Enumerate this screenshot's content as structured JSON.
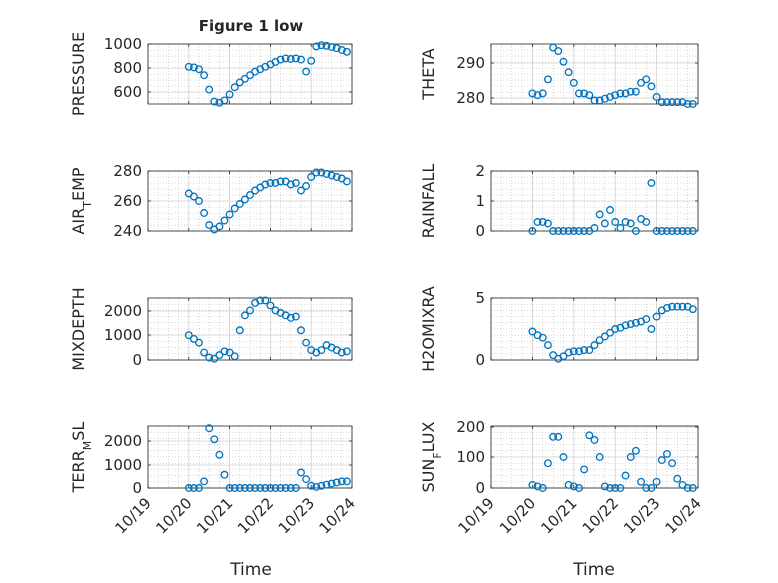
{
  "figure": {
    "title": "Figure 1 low"
  },
  "colors": {
    "marker": "#0072BD",
    "axis": "#262626",
    "grid": "#b0b0b0",
    "background": "#ffffff"
  },
  "chart_data": [
    {
      "type": "scatter",
      "ylabel": "PRESSURE",
      "title": "Figure 1 low",
      "xlim": [
        "10/19",
        "10/24"
      ],
      "ylim": [
        500,
        1000
      ],
      "yticks": [
        600,
        800,
        1000
      ],
      "grid": true,
      "x": [
        "10/20 00:00",
        "10/20 03:00",
        "10/20 06:00",
        "10/20 09:00",
        "10/20 12:00",
        "10/20 15:00",
        "10/20 18:00",
        "10/20 21:00",
        "10/21 00:00",
        "10/21 03:00",
        "10/21 06:00",
        "10/21 09:00",
        "10/21 12:00",
        "10/21 15:00",
        "10/21 18:00",
        "10/21 21:00",
        "10/22 00:00",
        "10/22 03:00",
        "10/22 06:00",
        "10/22 09:00",
        "10/22 12:00",
        "10/22 15:00",
        "10/22 18:00",
        "10/22 21:00",
        "10/23 00:00",
        "10/23 03:00",
        "10/23 06:00",
        "10/23 09:00",
        "10/23 12:00",
        "10/23 15:00",
        "10/23 18:00",
        "10/23 21:00"
      ],
      "y": [
        810,
        805,
        790,
        740,
        620,
        520,
        510,
        530,
        580,
        640,
        680,
        710,
        740,
        770,
        790,
        810,
        830,
        850,
        870,
        880,
        875,
        880,
        870,
        770,
        860,
        980,
        990,
        985,
        975,
        965,
        950,
        935
      ]
    },
    {
      "type": "scatter",
      "ylabel": "THETA",
      "xlim": [
        "10/19",
        "10/24"
      ],
      "ylim": [
        279,
        296
      ],
      "yticks": [
        280,
        290
      ],
      "grid": true,
      "x": [
        "10/20 00:00",
        "10/20 03:00",
        "10/20 06:00",
        "10/20 09:00",
        "10/20 12:00",
        "10/20 15:00",
        "10/20 18:00",
        "10/20 21:00",
        "10/21 00:00",
        "10/21 03:00",
        "10/21 06:00",
        "10/21 09:00",
        "10/21 12:00",
        "10/21 15:00",
        "10/21 18:00",
        "10/21 21:00",
        "10/22 00:00",
        "10/22 03:00",
        "10/22 06:00",
        "10/22 09:00",
        "10/22 12:00",
        "10/22 15:00",
        "10/22 18:00",
        "10/22 21:00",
        "10/23 00:00",
        "10/23 03:00",
        "10/23 06:00",
        "10/23 09:00",
        "10/23 12:00",
        "10/23 15:00",
        "10/23 18:00",
        "10/23 21:00"
      ],
      "y": [
        282,
        281.5,
        282,
        286,
        295,
        294,
        291,
        288,
        285,
        282,
        282,
        281.5,
        280,
        280,
        280.5,
        281,
        281.5,
        282,
        282,
        282.5,
        282.5,
        285,
        286,
        284,
        281,
        279.5,
        279.5,
        279.5,
        279.5,
        279.5,
        279,
        279
      ]
    },
    {
      "type": "scatter",
      "ylabel": "AIR_TEMP",
      "xlim": [
        "10/19",
        "10/24"
      ],
      "ylim": [
        240,
        280
      ],
      "yticks": [
        240,
        260,
        280
      ],
      "grid": true,
      "x": [
        "10/20 00:00",
        "10/20 03:00",
        "10/20 06:00",
        "10/20 09:00",
        "10/20 12:00",
        "10/20 15:00",
        "10/20 18:00",
        "10/20 21:00",
        "10/21 00:00",
        "10/21 03:00",
        "10/21 06:00",
        "10/21 09:00",
        "10/21 12:00",
        "10/21 15:00",
        "10/21 18:00",
        "10/21 21:00",
        "10/22 00:00",
        "10/22 03:00",
        "10/22 06:00",
        "10/22 09:00",
        "10/22 12:00",
        "10/22 15:00",
        "10/22 18:00",
        "10/22 21:00",
        "10/23 00:00",
        "10/23 03:00",
        "10/23 06:00",
        "10/23 09:00",
        "10/23 12:00",
        "10/23 15:00",
        "10/23 18:00",
        "10/23 21:00"
      ],
      "y": [
        265,
        263,
        260,
        252,
        244,
        241,
        243,
        247,
        251,
        255,
        258,
        261,
        264,
        267,
        269,
        271,
        272,
        272,
        273,
        273,
        271,
        272,
        267,
        270,
        276,
        279,
        279,
        278,
        277,
        276,
        275,
        273
      ]
    },
    {
      "type": "scatter",
      "ylabel": "RAINFALL",
      "xlim": [
        "10/19",
        "10/24"
      ],
      "ylim": [
        0,
        2
      ],
      "yticks": [
        0,
        1,
        2
      ],
      "grid": true,
      "x": [
        "10/20 00:00",
        "10/20 03:00",
        "10/20 06:00",
        "10/20 09:00",
        "10/20 12:00",
        "10/20 15:00",
        "10/20 18:00",
        "10/20 21:00",
        "10/21 00:00",
        "10/21 03:00",
        "10/21 06:00",
        "10/21 09:00",
        "10/21 12:00",
        "10/21 15:00",
        "10/21 18:00",
        "10/21 21:00",
        "10/22 00:00",
        "10/22 03:00",
        "10/22 06:00",
        "10/22 09:00",
        "10/22 12:00",
        "10/22 15:00",
        "10/22 18:00",
        "10/22 21:00",
        "10/23 00:00",
        "10/23 03:00",
        "10/23 06:00",
        "10/23 09:00",
        "10/23 12:00",
        "10/23 15:00",
        "10/23 18:00",
        "10/23 21:00"
      ],
      "y": [
        0,
        0.3,
        0.3,
        0.25,
        0,
        0,
        0,
        0,
        0,
        0,
        0,
        0,
        0.1,
        0.55,
        0.25,
        0.7,
        0.3,
        0.1,
        0.3,
        0.25,
        0,
        0.4,
        0.3,
        1.6,
        0,
        0,
        0,
        0,
        0,
        0,
        0,
        0
      ]
    },
    {
      "type": "scatter",
      "ylabel": "MIXDEPTH",
      "xlim": [
        "10/19",
        "10/24"
      ],
      "ylim": [
        0,
        2500
      ],
      "yticks": [
        0,
        1000,
        2000
      ],
      "grid": true,
      "x": [
        "10/20 00:00",
        "10/20 03:00",
        "10/20 06:00",
        "10/20 09:00",
        "10/20 12:00",
        "10/20 15:00",
        "10/20 18:00",
        "10/20 21:00",
        "10/21 00:00",
        "10/21 03:00",
        "10/21 06:00",
        "10/21 09:00",
        "10/21 12:00",
        "10/21 15:00",
        "10/21 18:00",
        "10/21 21:00",
        "10/22 00:00",
        "10/22 03:00",
        "10/22 06:00",
        "10/22 09:00",
        "10/22 12:00",
        "10/22 15:00",
        "10/22 18:00",
        "10/22 21:00",
        "10/23 00:00",
        "10/23 03:00",
        "10/23 06:00",
        "10/23 09:00",
        "10/23 12:00",
        "10/23 15:00",
        "10/23 18:00",
        "10/23 21:00"
      ],
      "y": [
        1000,
        850,
        700,
        300,
        100,
        50,
        200,
        350,
        300,
        150,
        1200,
        1800,
        2000,
        2300,
        2400,
        2400,
        2200,
        2000,
        1900,
        1800,
        1700,
        1750,
        1200,
        700,
        400,
        300,
        400,
        600,
        500,
        400,
        300,
        350
      ]
    },
    {
      "type": "scatter",
      "ylabel": "H2OMIXRA",
      "xlim": [
        "10/19",
        "10/24"
      ],
      "ylim": [
        0,
        5
      ],
      "yticks": [
        0,
        5
      ],
      "grid": true,
      "x": [
        "10/20 00:00",
        "10/20 03:00",
        "10/20 06:00",
        "10/20 09:00",
        "10/20 12:00",
        "10/20 15:00",
        "10/20 18:00",
        "10/20 21:00",
        "10/21 00:00",
        "10/21 03:00",
        "10/21 06:00",
        "10/21 09:00",
        "10/21 12:00",
        "10/21 15:00",
        "10/21 18:00",
        "10/21 21:00",
        "10/22 00:00",
        "10/22 03:00",
        "10/22 06:00",
        "10/22 09:00",
        "10/22 12:00",
        "10/22 15:00",
        "10/22 18:00",
        "10/22 21:00",
        "10/23 00:00",
        "10/23 03:00",
        "10/23 06:00",
        "10/23 09:00",
        "10/23 12:00",
        "10/23 15:00",
        "10/23 18:00",
        "10/23 21:00"
      ],
      "y": [
        2.3,
        2.0,
        1.8,
        1.2,
        0.4,
        0.1,
        0.3,
        0.6,
        0.7,
        0.7,
        0.8,
        0.8,
        1.2,
        1.6,
        1.9,
        2.2,
        2.5,
        2.6,
        2.8,
        2.9,
        3.0,
        3.1,
        3.3,
        2.5,
        3.5,
        4.0,
        4.2,
        4.3,
        4.3,
        4.3,
        4.3,
        4.1
      ]
    },
    {
      "type": "scatter",
      "ylabel": "TERR_MSL",
      "xlim": [
        "10/19",
        "10/24"
      ],
      "ylim": [
        0,
        2800
      ],
      "yticks": [
        0,
        1000,
        2000
      ],
      "grid": true,
      "x": [
        "10/20 00:00",
        "10/20 03:00",
        "10/20 06:00",
        "10/20 09:00",
        "10/20 12:00",
        "10/20 15:00",
        "10/20 18:00",
        "10/20 21:00",
        "10/21 00:00",
        "10/21 03:00",
        "10/21 06:00",
        "10/21 09:00",
        "10/21 12:00",
        "10/21 15:00",
        "10/21 18:00",
        "10/21 21:00",
        "10/22 00:00",
        "10/22 03:00",
        "10/22 06:00",
        "10/22 09:00",
        "10/22 12:00",
        "10/22 15:00",
        "10/22 18:00",
        "10/22 21:00",
        "10/23 00:00",
        "10/23 03:00",
        "10/23 06:00",
        "10/23 09:00",
        "10/23 12:00",
        "10/23 15:00",
        "10/23 18:00",
        "10/23 21:00"
      ],
      "y": [
        0,
        0,
        0,
        300,
        2700,
        2200,
        1500,
        600,
        0,
        0,
        0,
        0,
        0,
        0,
        0,
        0,
        0,
        0,
        0,
        0,
        0,
        0,
        700,
        400,
        100,
        50,
        100,
        150,
        200,
        250,
        300,
        300
      ]
    },
    {
      "type": "scatter",
      "ylabel": "SUN_FLUX",
      "xlim": [
        "10/19",
        "10/24"
      ],
      "ylim": [
        0,
        200
      ],
      "yticks": [
        0,
        100,
        200
      ],
      "grid": true,
      "x": [
        "10/20 00:00",
        "10/20 03:00",
        "10/20 06:00",
        "10/20 09:00",
        "10/20 12:00",
        "10/20 15:00",
        "10/20 18:00",
        "10/20 21:00",
        "10/21 00:00",
        "10/21 03:00",
        "10/21 06:00",
        "10/21 09:00",
        "10/21 12:00",
        "10/21 15:00",
        "10/21 18:00",
        "10/21 21:00",
        "10/22 00:00",
        "10/22 03:00",
        "10/22 06:00",
        "10/22 09:00",
        "10/22 12:00",
        "10/22 15:00",
        "10/22 18:00",
        "10/22 21:00",
        "10/23 00:00",
        "10/23 03:00",
        "10/23 06:00",
        "10/23 09:00",
        "10/23 12:00",
        "10/23 15:00",
        "10/23 18:00",
        "10/23 21:00"
      ],
      "y": [
        10,
        5,
        0,
        80,
        165,
        165,
        100,
        10,
        5,
        0,
        60,
        170,
        155,
        100,
        5,
        0,
        0,
        0,
        40,
        100,
        120,
        20,
        0,
        0,
        20,
        90,
        110,
        80,
        30,
        10,
        0,
        0
      ]
    }
  ],
  "xaxis": {
    "tick_labels": [
      "10/19",
      "10/20",
      "10/21",
      "10/22",
      "10/23",
      "10/24"
    ],
    "label_left": "Time",
    "label_right": "Time"
  }
}
